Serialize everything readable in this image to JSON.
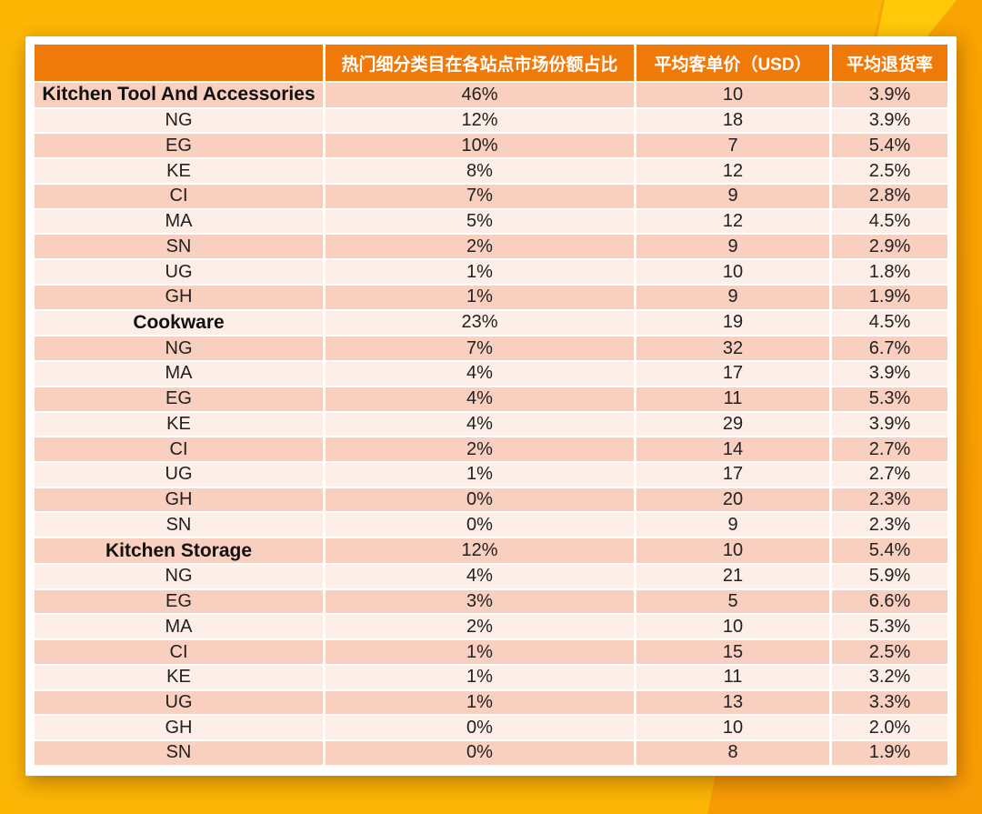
{
  "colors": {
    "background_amber": "#FCB705",
    "background_orange": "#F89F06",
    "background_bright_wedge": "#FFC90A",
    "header_orange": "#EF7A09",
    "row_dark_pink": "#F9CFC0",
    "row_light_pink": "#FDEEE8",
    "card_white": "#FFFFFF",
    "header_text": "#FFFFFF",
    "body_text": "#212121"
  },
  "table": {
    "headers": [
      "",
      "热门细分类目在各站点市场份额占比",
      "平均客单价（USD）",
      "平均退货率"
    ],
    "rows": [
      {
        "label": "Kitchen Tool And Accessories",
        "is_category": true,
        "share": "46%",
        "price": "10",
        "return_rate": "3.9%"
      },
      {
        "label": "NG",
        "is_category": false,
        "share": "12%",
        "price": "18",
        "return_rate": "3.9%"
      },
      {
        "label": "EG",
        "is_category": false,
        "share": "10%",
        "price": "7",
        "return_rate": "5.4%"
      },
      {
        "label": "KE",
        "is_category": false,
        "share": "8%",
        "price": "12",
        "return_rate": "2.5%"
      },
      {
        "label": "CI",
        "is_category": false,
        "share": "7%",
        "price": "9",
        "return_rate": "2.8%"
      },
      {
        "label": "MA",
        "is_category": false,
        "share": "5%",
        "price": "12",
        "return_rate": "4.5%"
      },
      {
        "label": "SN",
        "is_category": false,
        "share": "2%",
        "price": "9",
        "return_rate": "2.9%"
      },
      {
        "label": "UG",
        "is_category": false,
        "share": "1%",
        "price": "10",
        "return_rate": "1.8%"
      },
      {
        "label": "GH",
        "is_category": false,
        "share": "1%",
        "price": "9",
        "return_rate": "1.9%"
      },
      {
        "label": "Cookware",
        "is_category": true,
        "share": "23%",
        "price": "19",
        "return_rate": "4.5%"
      },
      {
        "label": "NG",
        "is_category": false,
        "share": "7%",
        "price": "32",
        "return_rate": "6.7%"
      },
      {
        "label": "MA",
        "is_category": false,
        "share": "4%",
        "price": "17",
        "return_rate": "3.9%"
      },
      {
        "label": "EG",
        "is_category": false,
        "share": "4%",
        "price": "11",
        "return_rate": "5.3%"
      },
      {
        "label": "KE",
        "is_category": false,
        "share": "4%",
        "price": "29",
        "return_rate": "3.9%"
      },
      {
        "label": "CI",
        "is_category": false,
        "share": "2%",
        "price": "14",
        "return_rate": "2.7%"
      },
      {
        "label": "UG",
        "is_category": false,
        "share": "1%",
        "price": "17",
        "return_rate": "2.7%"
      },
      {
        "label": "GH",
        "is_category": false,
        "share": "0%",
        "price": "20",
        "return_rate": "2.3%"
      },
      {
        "label": "SN",
        "is_category": false,
        "share": "0%",
        "price": "9",
        "return_rate": "2.3%"
      },
      {
        "label": "Kitchen Storage",
        "is_category": true,
        "share": "12%",
        "price": "10",
        "return_rate": "5.4%"
      },
      {
        "label": "NG",
        "is_category": false,
        "share": "4%",
        "price": "21",
        "return_rate": "5.9%"
      },
      {
        "label": "EG",
        "is_category": false,
        "share": "3%",
        "price": "5",
        "return_rate": "6.6%"
      },
      {
        "label": "MA",
        "is_category": false,
        "share": "2%",
        "price": "10",
        "return_rate": "5.3%"
      },
      {
        "label": "CI",
        "is_category": false,
        "share": "1%",
        "price": "15",
        "return_rate": "2.5%"
      },
      {
        "label": "KE",
        "is_category": false,
        "share": "1%",
        "price": "11",
        "return_rate": "3.2%"
      },
      {
        "label": "UG",
        "is_category": false,
        "share": "1%",
        "price": "13",
        "return_rate": "3.3%"
      },
      {
        "label": "GH",
        "is_category": false,
        "share": "0%",
        "price": "10",
        "return_rate": "2.0%"
      },
      {
        "label": "SN",
        "is_category": false,
        "share": "0%",
        "price": "8",
        "return_rate": "1.9%"
      }
    ]
  }
}
